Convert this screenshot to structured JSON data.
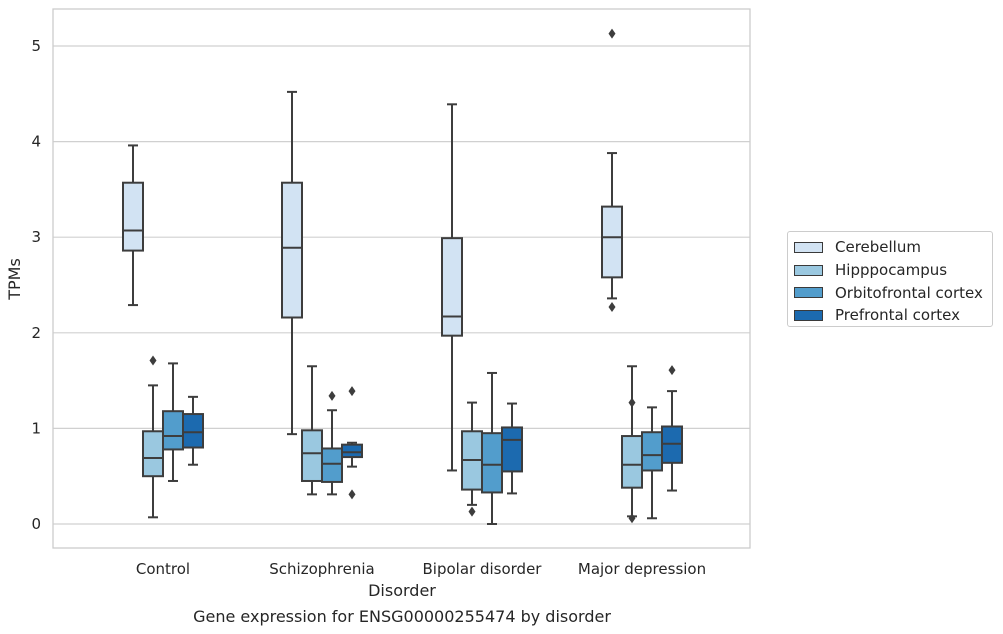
{
  "chart_data": {
    "type": "box",
    "title": "Gene expression for ENSG00000255474 by disorder",
    "xlabel": "Disorder",
    "ylabel": "TPMs",
    "ylim": [
      -0.25,
      5.4
    ],
    "yticks": [
      0,
      1,
      2,
      3,
      4,
      5
    ],
    "grid": "horizontal",
    "legend_placement": "right",
    "categories": [
      "Control",
      "Schizophrenia",
      "Bipolar disorder",
      "Major depression"
    ],
    "series": [
      {
        "name": "Cerebellum",
        "color": "#d2e3f3",
        "boxes": [
          {
            "whisker_low": 2.29,
            "q1": 2.86,
            "median": 3.07,
            "q3": 3.57,
            "whisker_high": 3.96,
            "outliers": []
          },
          {
            "whisker_low": 0.94,
            "q1": 2.16,
            "median": 2.89,
            "q3": 3.57,
            "whisker_high": 4.52,
            "outliers": []
          },
          {
            "whisker_low": 0.56,
            "q1": 1.97,
            "median": 2.17,
            "q3": 2.99,
            "whisker_high": 4.39,
            "outliers": []
          },
          {
            "whisker_low": 2.36,
            "q1": 2.58,
            "median": 3.0,
            "q3": 3.32,
            "whisker_high": 3.88,
            "outliers": [
              5.13,
              2.27
            ]
          }
        ]
      },
      {
        "name": "Hipppocampus",
        "color": "#9ac8e0",
        "boxes": [
          {
            "whisker_low": 0.07,
            "q1": 0.5,
            "median": 0.69,
            "q3": 0.97,
            "whisker_high": 1.45,
            "outliers": [
              1.71
            ]
          },
          {
            "whisker_low": 0.31,
            "q1": 0.45,
            "median": 0.74,
            "q3": 0.98,
            "whisker_high": 1.65,
            "outliers": []
          },
          {
            "whisker_low": 0.2,
            "q1": 0.36,
            "median": 0.67,
            "q3": 0.97,
            "whisker_high": 1.27,
            "outliers": [
              0.13
            ]
          },
          {
            "whisker_low": 0.08,
            "q1": 0.38,
            "median": 0.62,
            "q3": 0.92,
            "whisker_high": 1.65,
            "outliers": [
              1.27,
              0.06
            ]
          }
        ]
      },
      {
        "name": "Orbitofrontal cortex",
        "color": "#529dcc",
        "boxes": [
          {
            "whisker_low": 0.45,
            "q1": 0.78,
            "median": 0.92,
            "q3": 1.18,
            "whisker_high": 1.68,
            "outliers": []
          },
          {
            "whisker_low": 0.31,
            "q1": 0.44,
            "median": 0.63,
            "q3": 0.79,
            "whisker_high": 1.19,
            "outliers": [
              1.34
            ]
          },
          {
            "whisker_low": 0.0,
            "q1": 0.33,
            "median": 0.62,
            "q3": 0.95,
            "whisker_high": 1.58,
            "outliers": []
          },
          {
            "whisker_low": 0.06,
            "q1": 0.56,
            "median": 0.72,
            "q3": 0.96,
            "whisker_high": 1.22,
            "outliers": []
          }
        ]
      },
      {
        "name": "Prefrontal cortex",
        "color": "#1c6aaf",
        "boxes": [
          {
            "whisker_low": 0.62,
            "q1": 0.8,
            "median": 0.96,
            "q3": 1.15,
            "whisker_high": 1.33,
            "outliers": []
          },
          {
            "whisker_low": 0.6,
            "q1": 0.7,
            "median": 0.75,
            "q3": 0.83,
            "whisker_high": 0.85,
            "outliers": [
              1.39,
              0.31
            ]
          },
          {
            "whisker_low": 0.32,
            "q1": 0.55,
            "median": 0.88,
            "q3": 1.01,
            "whisker_high": 1.26,
            "outliers": []
          },
          {
            "whisker_low": 0.35,
            "q1": 0.64,
            "median": 0.84,
            "q3": 1.02,
            "whisker_high": 1.39,
            "outliers": [
              1.61
            ]
          }
        ]
      }
    ]
  }
}
